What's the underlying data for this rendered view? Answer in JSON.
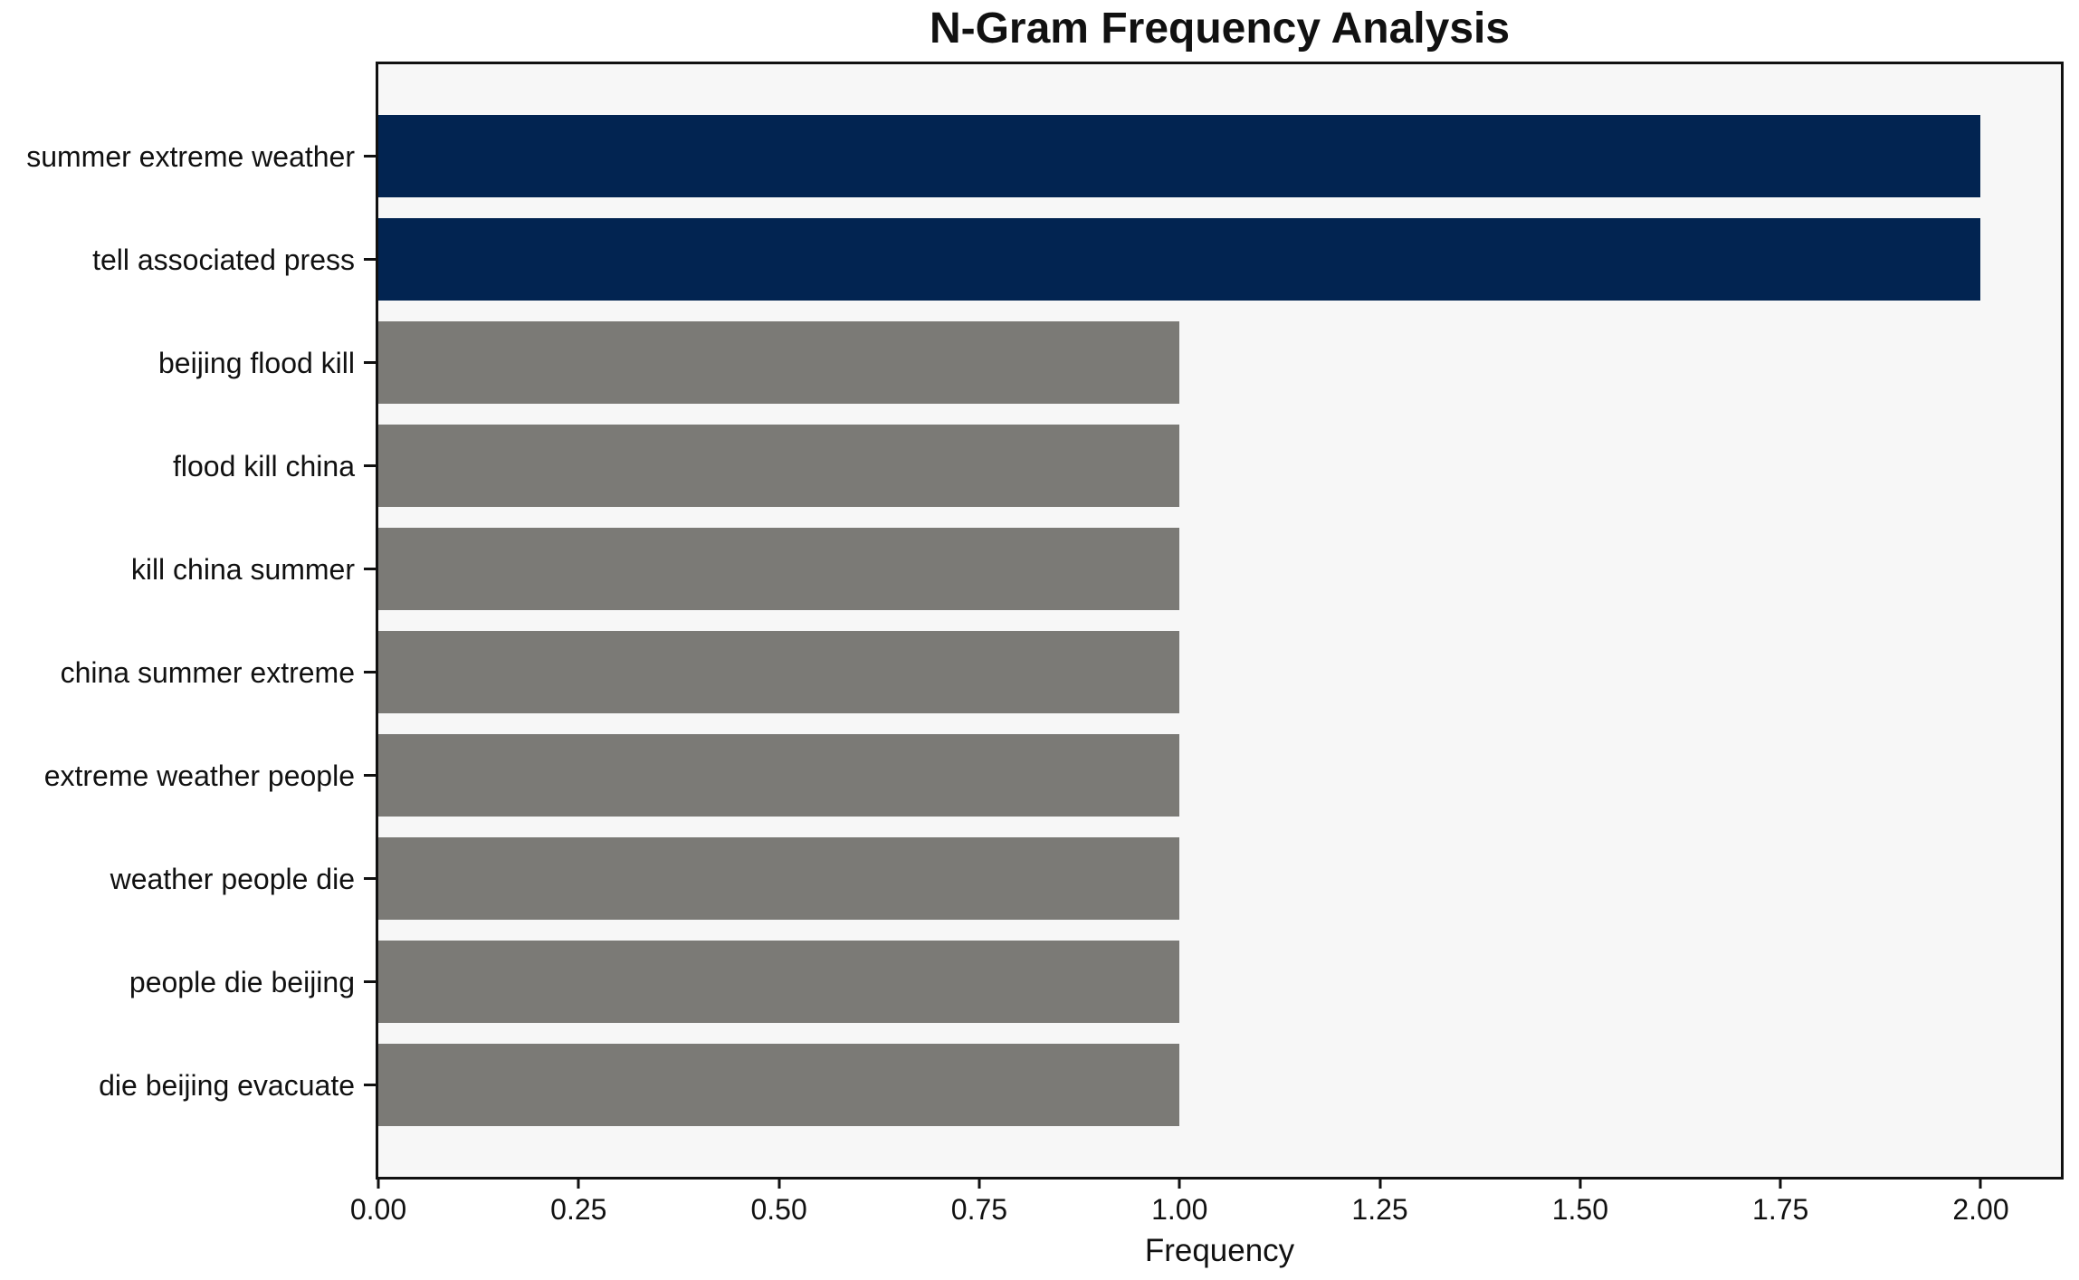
{
  "chart_data": {
    "type": "bar",
    "orientation": "horizontal",
    "title": "N-Gram Frequency Analysis",
    "xlabel": "Frequency",
    "ylabel": "",
    "categories": [
      "summer extreme weather",
      "tell associated press",
      "beijing flood kill",
      "flood kill china",
      "kill china summer",
      "china summer extreme",
      "extreme weather people",
      "weather people die",
      "people die beijing",
      "die beijing evacuate"
    ],
    "values": [
      2.0,
      2.0,
      1.0,
      1.0,
      1.0,
      1.0,
      1.0,
      1.0,
      1.0,
      1.0
    ],
    "bar_colors": [
      "#022451",
      "#022451",
      "#7b7a76",
      "#7b7a76",
      "#7b7a76",
      "#7b7a76",
      "#7b7a76",
      "#7b7a76",
      "#7b7a76",
      "#7b7a76"
    ],
    "xlim": [
      0,
      2.1
    ],
    "xticks": [
      0,
      0.25,
      0.5,
      0.75,
      1.0,
      1.25,
      1.5,
      1.75,
      2.0
    ],
    "xtick_labels": [
      "0.00",
      "0.25",
      "0.50",
      "0.75",
      "1.00",
      "1.25",
      "1.50",
      "1.75",
      "2.00"
    ],
    "grid": false,
    "legend": "none"
  },
  "colors": {
    "highlight_bar": "#022451",
    "default_bar": "#7b7a76",
    "plot_background": "#f7f7f7",
    "spine": "#111111",
    "text": "#111111",
    "page_background": "#ffffff"
  }
}
